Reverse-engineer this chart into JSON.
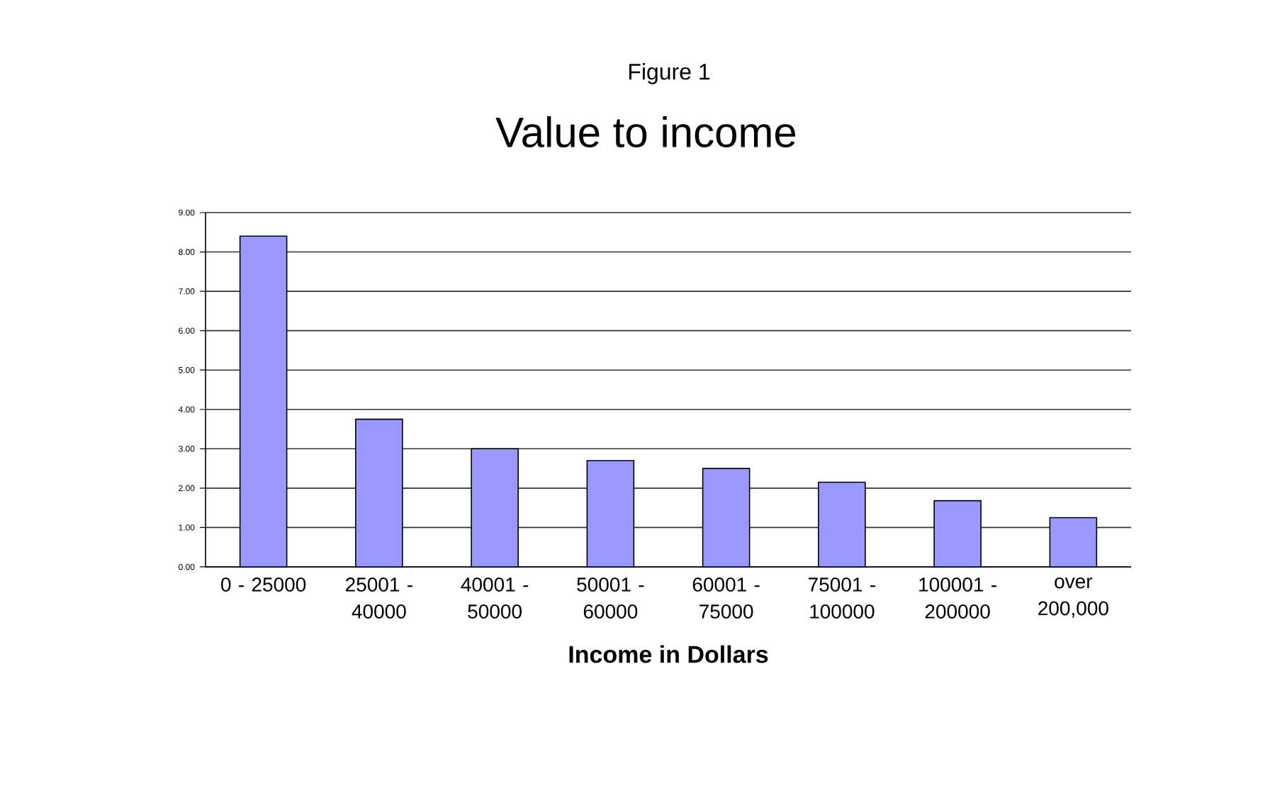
{
  "chart_data": {
    "type": "bar",
    "title": "Value to income",
    "annotations": [
      "Figure 1"
    ],
    "xlabel": "Income in Dollars",
    "categories": [
      "0 - 25000",
      "25001 - 40000",
      "40001 - 50000",
      "50001 - 60000",
      "60001 - 75000",
      "75001 - 100000",
      "100001 - 200000",
      "over 200,000"
    ],
    "values": [
      8.4,
      3.75,
      3.0,
      2.7,
      2.5,
      2.15,
      1.68,
      1.25
    ],
    "color": "#9999ff",
    "ylim": [
      0,
      9
    ],
    "yticks": [
      {
        "value": 0,
        "label": "0.00"
      },
      {
        "value": 1,
        "label": "1.00"
      },
      {
        "value": 2,
        "label": "2.00"
      },
      {
        "value": 3,
        "label": "3.00"
      },
      {
        "value": 4,
        "label": "4.00"
      },
      {
        "value": 5,
        "label": "5.00"
      },
      {
        "value": 6,
        "label": "6.00"
      },
      {
        "value": 7,
        "label": "7.00"
      },
      {
        "value": 8,
        "label": "8.00"
      },
      {
        "value": 9,
        "label": "9.00"
      }
    ],
    "grid": "y"
  }
}
